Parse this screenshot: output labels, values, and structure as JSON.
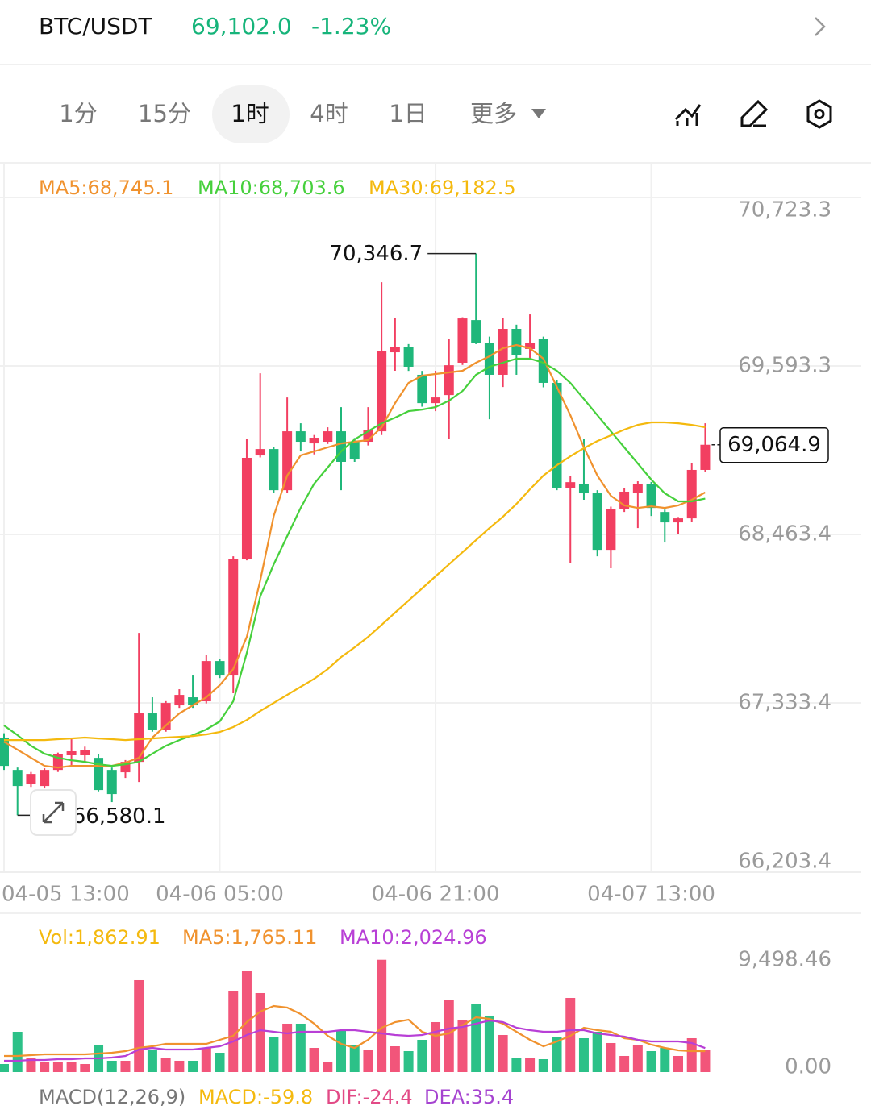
{
  "header": {
    "pair": "BTC/USDT",
    "price": "69,102.0",
    "change": "-1.23%"
  },
  "tabs": [
    "1分",
    "15分",
    "1时",
    "4时",
    "1日",
    "更多"
  ],
  "chart_data": [
    {
      "type": "candlestick",
      "open": [
        67101,
        66884,
        66790,
        66776,
        66884,
        66982,
        66982,
        66965,
        66884,
        66868,
        66938,
        67263,
        67155,
        67317,
        67371,
        67344,
        67614,
        67517,
        68301,
        68993,
        69036,
        68760,
        69155,
        69074,
        69085,
        69155,
        69085,
        69085,
        69155,
        69685,
        69723,
        69534,
        69344,
        69398,
        69615,
        69901,
        69750,
        69534,
        69842,
        69707,
        69777,
        69480,
        68777,
        68804,
        68739,
        68360,
        68631,
        68739,
        68804,
        68614,
        68544,
        68571,
        68896
      ],
      "high": [
        67130,
        66900,
        66870,
        66895,
        67000,
        67101,
        67040,
        66990,
        66900,
        66950,
        67803,
        67371,
        67345,
        67425,
        67517,
        67657,
        67630,
        68317,
        69101,
        69544,
        69050,
        69382,
        69209,
        69130,
        69182,
        69317,
        69110,
        69317,
        70155,
        69912,
        69740,
        69560,
        69561,
        69777,
        69920,
        70346.7,
        69790,
        69912,
        69870,
        69939,
        69790,
        69500,
        68858,
        69101,
        68760,
        68650,
        68777,
        68820,
        68815,
        68630,
        68580,
        68939,
        69209
      ],
      "low": [
        66884,
        66580.1,
        66770,
        66760,
        66870,
        66911,
        66938,
        66740,
        66668,
        66830,
        66803,
        67140,
        67140,
        67300,
        67300,
        67330,
        67500,
        67398,
        68290,
        68980,
        68740,
        68740,
        69020,
        69000,
        69070,
        68760,
        68950,
        69060,
        69130,
        69561,
        69560,
        69320,
        69290,
        69101,
        69600,
        69740,
        69236,
        69452,
        69534,
        69642,
        69450,
        68760,
        68274,
        68696,
        68317,
        68236,
        68614,
        68506,
        68587,
        68409,
        68468,
        68550,
        68880
      ],
      "close": [
        66911,
        66776,
        66857,
        66884,
        66992,
        67009,
        67019,
        66749,
        66722,
        66938,
        67263,
        67155,
        67333,
        67387,
        67317,
        67614,
        67517,
        68301,
        68977,
        69036,
        68760,
        69155,
        69085,
        69112,
        69155,
        68950,
        68966,
        69166,
        69696,
        69723,
        69588,
        69344,
        69382,
        69598,
        69912,
        69750,
        69534,
        69842,
        69669,
        69750,
        69480,
        68777,
        68814,
        68739,
        68360,
        68631,
        68750,
        68804,
        68641,
        68544,
        68571,
        68896,
        69064.9
      ],
      "up_color": "#f23f61",
      "down_color": "#1fb77a",
      "series": [
        {
          "name": "MA5:68,745.1",
          "color": "#f0922e",
          "values": [
            67073,
            67019,
            66965,
            66911,
            66900,
            66911,
            66911,
            66911,
            66911,
            66933,
            66965,
            67101,
            67182,
            67263,
            67317,
            67371,
            67452,
            67560,
            67776,
            68155,
            68587,
            68858,
            68993,
            69020,
            69047,
            69074,
            69085,
            69096,
            69182,
            69344,
            69480,
            69528,
            69539,
            69550,
            69561,
            69615,
            69658,
            69712,
            69734,
            69712,
            69642,
            69452,
            69263,
            69047,
            68858,
            68723,
            68658,
            68641,
            68652,
            68641,
            68658,
            68696,
            68745.1
          ]
        },
        {
          "name": "MA10:68,703.6",
          "color": "#46d03c",
          "values": [
            67182,
            67117,
            67046,
            66992,
            66965,
            66949,
            66938,
            66922,
            66911,
            66922,
            66938,
            66992,
            67046,
            67084,
            67117,
            67155,
            67209,
            67344,
            67668,
            68047,
            68263,
            68452,
            68641,
            68804,
            68912,
            69020,
            69101,
            69155,
            69209,
            69247,
            69290,
            69301,
            69317,
            69361,
            69425,
            69534,
            69588,
            69615,
            69642,
            69642,
            69615,
            69561,
            69480,
            69371,
            69263,
            69155,
            69047,
            68939,
            68831,
            68739,
            68685,
            68685,
            68703.6
          ]
        },
        {
          "name": "MA30:69,182.5",
          "color": "#f4b90e",
          "values": [
            67084,
            67084,
            67084,
            67084,
            67090,
            67095,
            67101,
            67095,
            67090,
            67084,
            67090,
            67095,
            67101,
            67106,
            67111,
            67122,
            67138,
            67171,
            67219,
            67279,
            67333,
            67387,
            67441,
            67495,
            67560,
            67641,
            67706,
            67776,
            67857,
            67939,
            68020,
            68101,
            68182,
            68263,
            68344,
            68425,
            68506,
            68582,
            68668,
            68766,
            68858,
            68928,
            68987,
            69042,
            69090,
            69128,
            69166,
            69198,
            69215,
            69215,
            69209,
            69198,
            69182.5
          ]
        }
      ],
      "ylim": [
        66203.4,
        70723.3
      ],
      "yticks": [
        {
          "value": 70723.3,
          "label": "70,723.3"
        },
        {
          "value": 69593.3,
          "label": "69,593.3"
        },
        {
          "value": 68463.4,
          "label": "68,463.4"
        },
        {
          "value": 67333.4,
          "label": "67,333.4"
        },
        {
          "value": 66203.4,
          "label": "66,203.4"
        }
      ],
      "xticks": [
        {
          "value": 0,
          "label": "04-05 13:00"
        },
        {
          "value": 16,
          "label": "04-06 05:00"
        },
        {
          "value": 32,
          "label": "04-06 21:00"
        },
        {
          "value": 48,
          "label": "04-07 13:00"
        }
      ],
      "grid": true,
      "max_label": "70,346.7",
      "min_label": "66,580.1",
      "last_label": "69,064.9"
    },
    {
      "type": "bar",
      "label": "Vol:1,862.91",
      "values": [
        678,
        3392,
        1221,
        814,
        814,
        814,
        678,
        2307,
        950,
        950,
        7735,
        1900,
        1221,
        950,
        950,
        2035,
        1628,
        6785,
        8549,
        6649,
        2985,
        4071,
        4071,
        2035,
        814,
        3528,
        2307,
        1900,
        9450,
        2171,
        1764,
        2714,
        4207,
        6106,
        4410,
        5767,
        4750,
        3121,
        1221,
        1221,
        1086,
        2985,
        6242,
        2850,
        3392,
        2443,
        1357,
        2307,
        1764,
        2035,
        1357,
        2850,
        1862.91
      ],
      "series": [
        {
          "name": "MA5:1,765.11",
          "color": "#f0922e",
          "values": [
            1357,
            1357,
            1425,
            1493,
            1493,
            1493,
            1493,
            1561,
            1628,
            1764,
            2036,
            2171,
            2375,
            2375,
            2375,
            2375,
            2714,
            3053,
            4207,
            5089,
            5564,
            5428,
            4885,
            4071,
            3053,
            2375,
            2036,
            2714,
            3732,
            4207,
            4410,
            3393,
            3053,
            3257,
            3935,
            4614,
            4478,
            4071,
            3393,
            2714,
            2171,
            2578,
            3053,
            3732,
            3528,
            3393,
            2850,
            2714,
            2307,
            2036,
            1832,
            1764,
            1765.11
          ]
        },
        {
          "name": "MA10:2,024.96",
          "color": "#b83fd6",
          "values": [
            950,
            950,
            1018,
            1018,
            1086,
            1086,
            1153,
            1153,
            1221,
            1357,
            1900,
            2036,
            1900,
            1900,
            1900,
            2036,
            2171,
            2578,
            3121,
            3528,
            3393,
            3257,
            3393,
            3393,
            3393,
            3528,
            3528,
            3393,
            3257,
            3121,
            3053,
            3121,
            3393,
            3664,
            3800,
            4071,
            4342,
            4207,
            3732,
            3528,
            3393,
            3393,
            3528,
            3528,
            3257,
            3121,
            2985,
            2714,
            2578,
            2578,
            2578,
            2443,
            2024.96
          ]
        }
      ],
      "ylim": [
        0,
        9498.46
      ],
      "yticks": [
        {
          "value": 9498.46,
          "label": "9,498.46"
        },
        {
          "value": 0,
          "label": "0.00"
        }
      ]
    }
  ],
  "macd_legend": [
    "MACD(12,26,9)",
    "MACD:-59.8",
    "DIF:-24.4",
    "DEA:35.4"
  ]
}
